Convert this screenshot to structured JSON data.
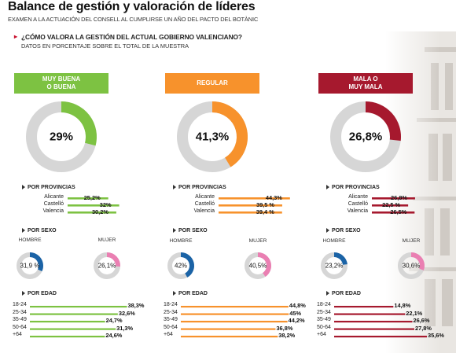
{
  "title": "Balance de gestión y valoración de líderes",
  "subtitle": "EXAMEN A LA ACTUACIÓN DEL CONSELL AL CUMPLIRSE UN AÑO DEL PACTO DEL BOTÀNIC",
  "question": "¿CÓMO VALORA LA GESTIÓN DEL ACTUAL GOBIERNO VALENCIANO?",
  "note": "DATOS EN PORCENTAJE SOBRE EL TOTAL DE LA MUESTRA",
  "section_labels": {
    "provincias": "POR PROVINCIAS",
    "sexo": "POR SEXO",
    "edad": "POR EDAD"
  },
  "gender_labels": [
    "HOMBRE",
    "MUJER"
  ],
  "colors": {
    "positive": "#7dc242",
    "neutral": "#f7922c",
    "negative": "#a6192e",
    "ring_bg": "#d6d6d6",
    "hombre": "#1b63a6",
    "mujer": "#ea7fb2"
  },
  "chart_data": [
    {
      "type": "pie",
      "panel": "muy-buena",
      "header": "MUY BUENA\nO BUENA",
      "color": "#7dc242",
      "total": 29,
      "total_label": "29%",
      "provincias": {
        "categories": [
          "Alicante",
          "Castelló",
          "Valencia"
        ],
        "values": [
          25.2,
          32,
          30.2
        ],
        "labels": [
          "25,2%",
          "32%",
          "30,2%"
        ]
      },
      "sexo": {
        "categories": [
          "HOMBRE",
          "MUJER"
        ],
        "values": [
          31.9,
          26.1
        ],
        "labels": [
          "31,9 %",
          "26,1%"
        ]
      },
      "edad": {
        "categories": [
          "18-24",
          "25-34",
          "35-49",
          "50-64",
          "+64"
        ],
        "values": [
          38.3,
          32.6,
          24.7,
          31.3,
          24.6
        ],
        "labels": [
          "38,3%",
          "32,6%",
          "24,7%",
          "31,3%",
          "24,6%"
        ]
      }
    },
    {
      "type": "pie",
      "panel": "regular",
      "header": "REGULAR",
      "color": "#f7922c",
      "total": 41.3,
      "total_label": "41,3%",
      "provincias": {
        "categories": [
          "Alicante",
          "Castelló",
          "Valencia"
        ],
        "values": [
          44.3,
          39.5,
          39.4
        ],
        "labels": [
          "44,3%",
          "39,5 %",
          "39,4 %"
        ]
      },
      "sexo": {
        "categories": [
          "HOMBRE",
          "MUJER"
        ],
        "values": [
          42,
          40.5
        ],
        "labels": [
          "42%",
          "40,5%"
        ]
      },
      "edad": {
        "categories": [
          "18-24",
          "25-34",
          "35-49",
          "50-64",
          "+64"
        ],
        "values": [
          44.8,
          45,
          44.2,
          36.8,
          38.2
        ],
        "labels": [
          "44,8%",
          "45%",
          "44,2%",
          "36,8%",
          "38,2%"
        ]
      }
    },
    {
      "type": "pie",
      "panel": "mala",
      "header": "MALA O\nMUY MALA",
      "color": "#a6192e",
      "total": 26.8,
      "total_label": "26,8%",
      "provincias": {
        "categories": [
          "Alicante",
          "Castelló",
          "Valencia"
        ],
        "values": [
          26.8,
          22.5,
          26.5
        ],
        "labels": [
          "26,8%",
          "22,5 %",
          "26,5%"
        ]
      },
      "sexo": {
        "categories": [
          "HOMBRE",
          "MUJER"
        ],
        "values": [
          23.2,
          30.6
        ],
        "labels": [
          "23,2%",
          "30,6%"
        ]
      },
      "edad": {
        "categories": [
          "18-24",
          "25-34",
          "35-49",
          "50-64",
          "+64"
        ],
        "values": [
          14.8,
          22.1,
          26.6,
          27.8,
          35.6
        ],
        "labels": [
          "14,8%",
          "22,1%",
          "26,6%",
          "27,8%",
          "35,6%"
        ]
      }
    }
  ]
}
